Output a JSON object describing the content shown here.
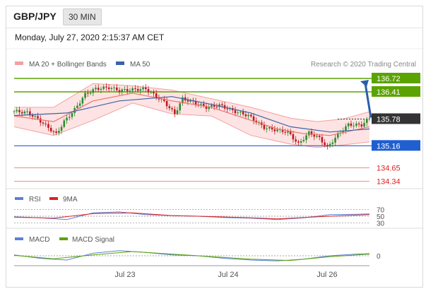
{
  "header": {
    "pair": "GBP/JPY",
    "timeframe": "30 MIN"
  },
  "date_line": "Monday, July 27, 2020 2:15:37 AM CET",
  "credit": "Research © 2020 Trading Central",
  "colors": {
    "bollinger": "#f4a0a0",
    "bollinger_fill": "#fde3e3",
    "ma20": "#f07070",
    "ma50": "#3b63a8",
    "candle_up": "#2d8c2d",
    "candle_down": "#c0181c",
    "resistance": "#5aa300",
    "support": "#1f5fd0",
    "red_level": "#e02020",
    "last": "#333333",
    "rsi": "#5b80d8",
    "rsi_ma": "#e02020",
    "macd": "#5b80d8",
    "macd_signal": "#5aa300",
    "arrow": "#2c5ea8"
  },
  "chart_data": [
    {
      "type": "candlestick",
      "title": "GBP/JPY",
      "legend": [
        "MA 20 + Bollinger Bands",
        "MA 50"
      ],
      "x_ticks": [
        "Jul 23",
        "Jul 24",
        "Jul 26"
      ],
      "ylim": [
        134.2,
        136.9
      ],
      "levels": [
        {
          "label": "136.72",
          "value": 136.72,
          "kind": "resistance"
        },
        {
          "label": "136.41",
          "value": 136.41,
          "kind": "resistance"
        },
        {
          "label": "135.78",
          "value": 135.78,
          "kind": "last"
        },
        {
          "label": "135.16",
          "value": 135.16,
          "kind": "support"
        },
        {
          "label": "134.65",
          "value": 134.65,
          "kind": "red"
        },
        {
          "label": "134.34",
          "value": 134.34,
          "kind": "red"
        }
      ],
      "close_path": [
        [
          0,
          135.96
        ],
        [
          5,
          135.93
        ],
        [
          9,
          135.78
        ],
        [
          13,
          135.58
        ],
        [
          16,
          135.43
        ],
        [
          19,
          135.72
        ],
        [
          23,
          136.0
        ],
        [
          27,
          136.35
        ],
        [
          31,
          136.48
        ],
        [
          36,
          136.51
        ],
        [
          40,
          136.44
        ],
        [
          45,
          136.46
        ],
        [
          50,
          136.48
        ],
        [
          54,
          136.3
        ],
        [
          57,
          136.18
        ],
        [
          61,
          135.9
        ],
        [
          64,
          136.25
        ],
        [
          68,
          136.17
        ],
        [
          73,
          136.05
        ],
        [
          78,
          136.1
        ],
        [
          84,
          135.95
        ],
        [
          89,
          135.86
        ],
        [
          95,
          135.58
        ],
        [
          100,
          135.52
        ],
        [
          104,
          135.48
        ],
        [
          108,
          135.2
        ],
        [
          112,
          135.46
        ],
        [
          116,
          135.34
        ],
        [
          119,
          135.12
        ],
        [
          123,
          135.42
        ],
        [
          127,
          135.65
        ],
        [
          132,
          135.64
        ],
        [
          135,
          135.8
        ]
      ],
      "ma20": [
        [
          0,
          135.85
        ],
        [
          15,
          135.72
        ],
        [
          30,
          136.2
        ],
        [
          45,
          136.38
        ],
        [
          60,
          136.2
        ],
        [
          75,
          136.05
        ],
        [
          90,
          135.75
        ],
        [
          100,
          135.55
        ],
        [
          110,
          135.44
        ],
        [
          120,
          135.4
        ],
        [
          135,
          135.6
        ]
      ],
      "ma50": [
        [
          0,
          135.86
        ],
        [
          20,
          135.92
        ],
        [
          40,
          136.2
        ],
        [
          60,
          136.3
        ],
        [
          75,
          136.12
        ],
        [
          90,
          135.92
        ],
        [
          105,
          135.6
        ],
        [
          120,
          135.48
        ],
        [
          135,
          135.55
        ]
      ],
      "bb_upper": [
        [
          0,
          136.05
        ],
        [
          15,
          136.05
        ],
        [
          30,
          136.6
        ],
        [
          45,
          136.55
        ],
        [
          60,
          136.45
        ],
        [
          75,
          136.25
        ],
        [
          90,
          136.05
        ],
        [
          105,
          135.8
        ],
        [
          115,
          135.72
        ],
        [
          125,
          135.78
        ],
        [
          135,
          135.95
        ]
      ],
      "bb_lower": [
        [
          0,
          135.6
        ],
        [
          15,
          135.4
        ],
        [
          30,
          135.75
        ],
        [
          45,
          136.15
        ],
        [
          60,
          135.9
        ],
        [
          75,
          135.85
        ],
        [
          90,
          135.4
        ],
        [
          105,
          135.2
        ],
        [
          115,
          135.12
        ],
        [
          125,
          135.18
        ],
        [
          135,
          135.25
        ]
      ],
      "forecast": {
        "from": 135.78,
        "to": 136.72
      }
    },
    {
      "type": "line",
      "legend": [
        "RSI",
        "9MA"
      ],
      "y_ticks": [
        "70",
        "50",
        "30"
      ],
      "ylim": [
        20,
        80
      ],
      "rsi": [
        [
          0,
          48
        ],
        [
          10,
          45
        ],
        [
          20,
          40
        ],
        [
          30,
          60
        ],
        [
          40,
          63
        ],
        [
          50,
          55
        ],
        [
          60,
          52
        ],
        [
          70,
          50
        ],
        [
          80,
          46
        ],
        [
          90,
          44
        ],
        [
          100,
          40
        ],
        [
          110,
          45
        ],
        [
          120,
          55
        ],
        [
          130,
          56
        ],
        [
          135,
          57
        ]
      ],
      "rsi_ma": [
        [
          0,
          47
        ],
        [
          15,
          44
        ],
        [
          30,
          58
        ],
        [
          45,
          60
        ],
        [
          60,
          52
        ],
        [
          75,
          49
        ],
        [
          90,
          45
        ],
        [
          100,
          42
        ],
        [
          115,
          48
        ],
        [
          135,
          55
        ]
      ]
    },
    {
      "type": "line",
      "legend": [
        "MACD",
        "MACD Signal"
      ],
      "y_ticks": [
        "0"
      ],
      "ylim": [
        -1,
        1
      ],
      "macd": [
        [
          0,
          0.1
        ],
        [
          10,
          -0.3
        ],
        [
          20,
          -0.5
        ],
        [
          30,
          0.3
        ],
        [
          40,
          0.6
        ],
        [
          50,
          0.4
        ],
        [
          60,
          0.1
        ],
        [
          70,
          0.0
        ],
        [
          80,
          -0.3
        ],
        [
          90,
          -0.5
        ],
        [
          100,
          -0.6
        ],
        [
          110,
          -0.4
        ],
        [
          120,
          0.0
        ],
        [
          130,
          0.2
        ],
        [
          135,
          0.25
        ]
      ],
      "macd_signal": [
        [
          0,
          0.05
        ],
        [
          15,
          -0.35
        ],
        [
          30,
          0.1
        ],
        [
          45,
          0.5
        ],
        [
          60,
          0.2
        ],
        [
          75,
          -0.1
        ],
        [
          90,
          -0.4
        ],
        [
          105,
          -0.55
        ],
        [
          120,
          -0.1
        ],
        [
          135,
          0.2
        ]
      ]
    }
  ]
}
